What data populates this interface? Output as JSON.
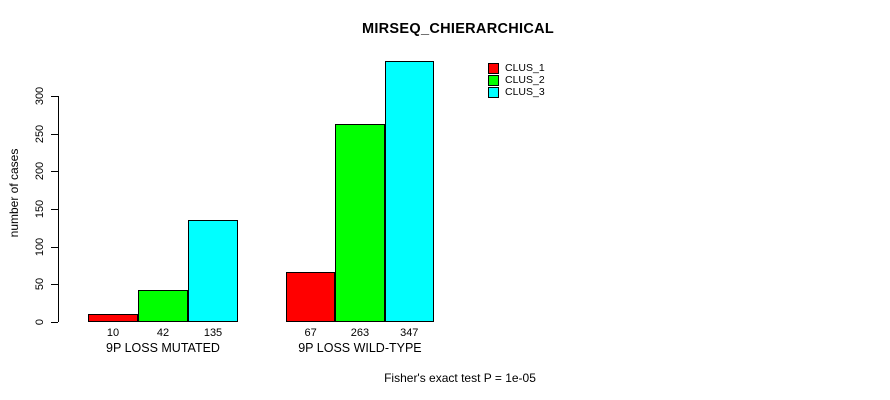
{
  "chart_data": {
    "type": "bar",
    "title": "MIRSEQ_CHIERARCHICAL",
    "ylabel": "number of cases",
    "xlabel": "",
    "categories": [
      "9P LOSS MUTATED",
      "9P LOSS WILD-TYPE"
    ],
    "series": [
      {
        "name": "CLUS_1",
        "color": "#ff0000",
        "values": [
          10,
          67
        ]
      },
      {
        "name": "CLUS_2",
        "color": "#00ff00",
        "values": [
          42,
          263
        ]
      },
      {
        "name": "CLUS_3",
        "color": "#00ffff",
        "values": [
          135,
          347
        ]
      }
    ],
    "bar_value_labels": [
      [
        10,
        42,
        135
      ],
      [
        67,
        263,
        347
      ]
    ],
    "yticks": [
      0,
      50,
      100,
      150,
      200,
      250,
      300
    ],
    "ylim": [
      0,
      347
    ],
    "grid": false,
    "legend": {
      "position": "top-right",
      "entries": [
        "CLUS_1",
        "CLUS_2",
        "CLUS_3"
      ]
    },
    "annotation": "Fisher's exact test P = 1e-05"
  }
}
